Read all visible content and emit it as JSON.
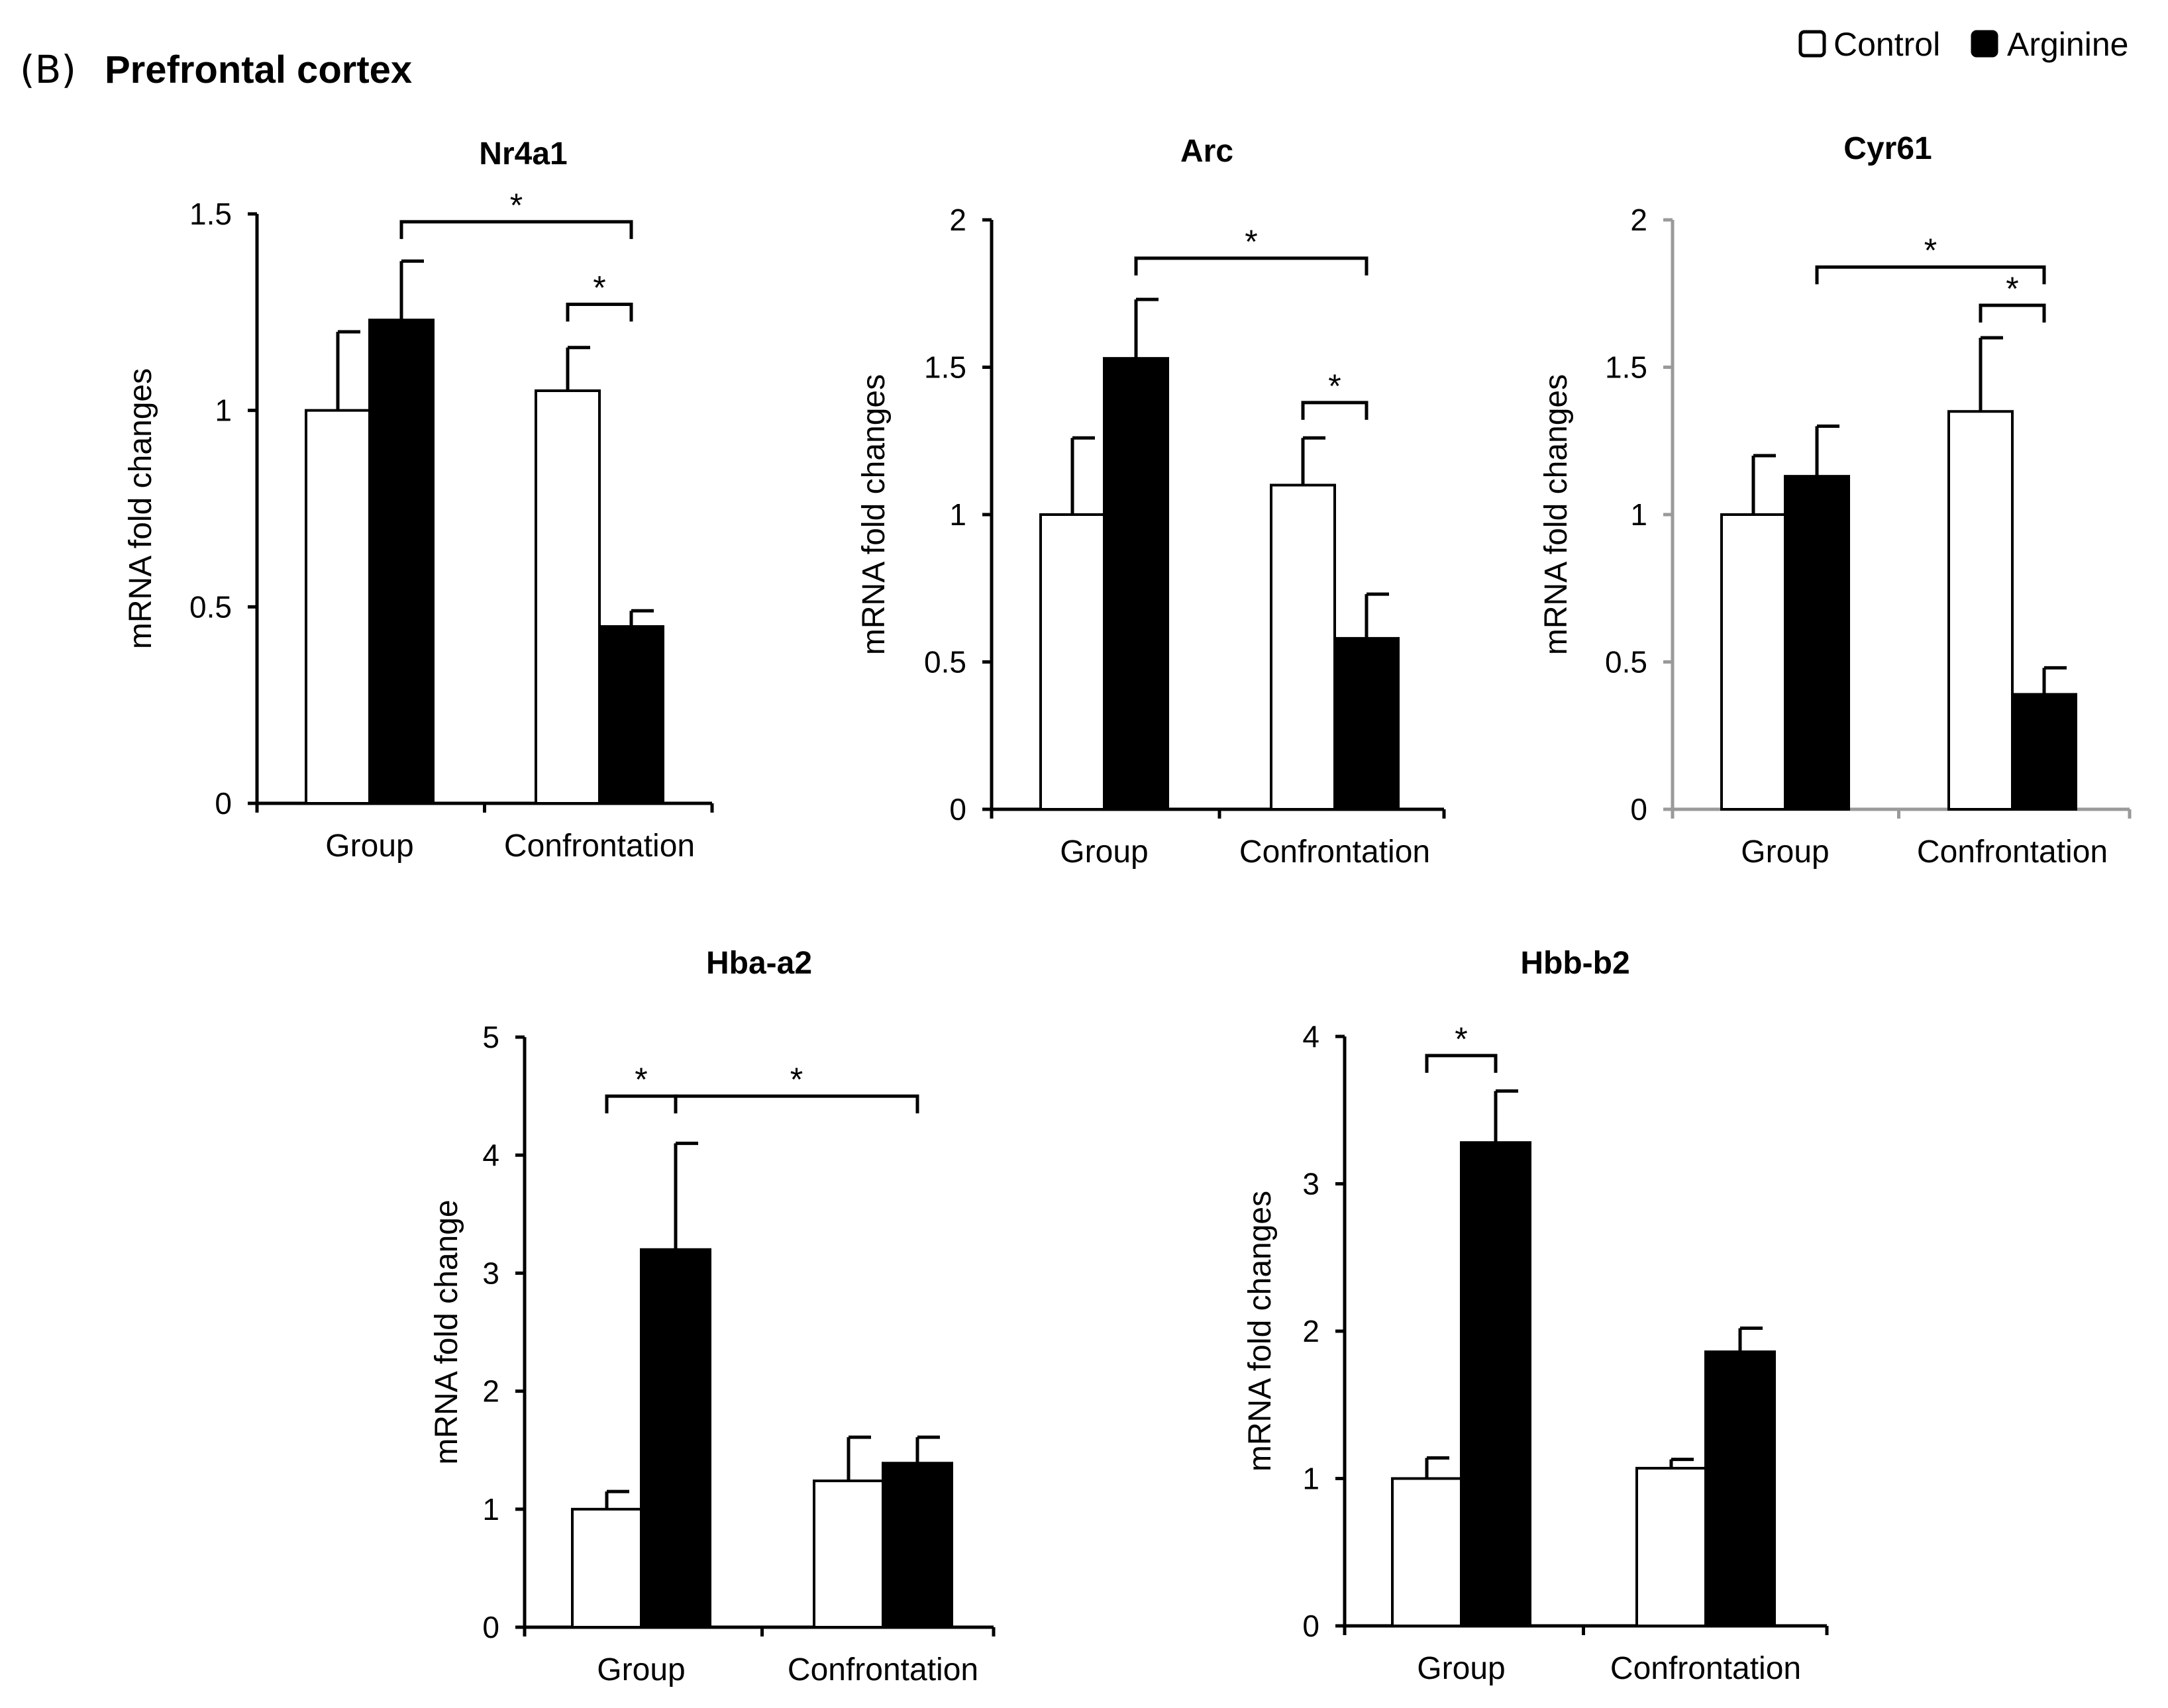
{
  "figure": {
    "panel_letter": "(B)",
    "panel_title": "Prefrontal cortex"
  },
  "legend": {
    "items": [
      {
        "label": "Control",
        "fill": "#ffffff"
      },
      {
        "label": "Arginine",
        "fill": "#000000"
      }
    ]
  },
  "colors": {
    "control": "#ffffff",
    "arginine": "#000000",
    "outline": "#000000",
    "axis_gray": "#9a9a9a"
  },
  "chart_data": [
    {
      "type": "bar",
      "title": "Nr4a1",
      "ylabel": "mRNA  fold changes",
      "ylim": [
        0,
        1.5
      ],
      "yticks": [
        "0",
        "0.5",
        "1",
        "1.5"
      ],
      "categories": [
        "Group",
        "Confrontation"
      ],
      "series": [
        {
          "name": "Control",
          "values": [
            1.0,
            1.05
          ],
          "errors": [
            0.2,
            0.11
          ]
        },
        {
          "name": "Arginine",
          "values": [
            1.23,
            0.45
          ],
          "errors": [
            0.15,
            0.04
          ]
        }
      ],
      "significance": [
        {
          "from": [
            0,
            1
          ],
          "to": [
            1,
            1
          ],
          "label": "*",
          "y": 1.48
        },
        {
          "from": [
            1,
            0
          ],
          "to": [
            1,
            1
          ],
          "label": "*",
          "y": 1.27
        }
      ]
    },
    {
      "type": "bar",
      "title": "Arc",
      "ylabel": "mRNA  fold changes",
      "ylim": [
        0,
        2
      ],
      "yticks": [
        "0",
        "0.5",
        "1",
        "1.5",
        "2"
      ],
      "categories": [
        "Group",
        "Confrontation"
      ],
      "series": [
        {
          "name": "Control",
          "values": [
            1.0,
            1.1
          ],
          "errors": [
            0.26,
            0.16
          ]
        },
        {
          "name": "Arginine",
          "values": [
            1.53,
            0.58
          ],
          "errors": [
            0.2,
            0.15
          ]
        }
      ],
      "significance": [
        {
          "from": [
            0,
            1
          ],
          "to": [
            1,
            1
          ],
          "label": "*",
          "y": 1.87
        },
        {
          "from": [
            1,
            0
          ],
          "to": [
            1,
            1
          ],
          "label": "*",
          "y": 1.38
        }
      ]
    },
    {
      "type": "bar",
      "title": "Cyr61",
      "ylabel": "mRNA  fold changes",
      "ylim": [
        0,
        2
      ],
      "yticks": [
        "0",
        "0.5",
        "1",
        "1.5",
        "2"
      ],
      "categories": [
        "Group",
        "Confrontation"
      ],
      "series": [
        {
          "name": "Control",
          "values": [
            1.0,
            1.35
          ],
          "errors": [
            0.2,
            0.25
          ]
        },
        {
          "name": "Arginine",
          "values": [
            1.13,
            0.39
          ],
          "errors": [
            0.17,
            0.09
          ]
        }
      ],
      "significance": [
        {
          "from": [
            0,
            1
          ],
          "to": [
            1,
            1
          ],
          "label": "*",
          "y": 1.84
        },
        {
          "from": [
            1,
            0
          ],
          "to": [
            1,
            1
          ],
          "label": "*",
          "y": 1.71
        }
      ]
    },
    {
      "type": "bar",
      "title": "Hba-a2",
      "ylabel": "mRNA  fold change",
      "ylim": [
        0,
        5
      ],
      "yticks": [
        "0",
        "1",
        "2",
        "3",
        "4",
        "5"
      ],
      "categories": [
        "Group",
        "Confrontation"
      ],
      "series": [
        {
          "name": "Control",
          "values": [
            1.0,
            1.24
          ],
          "errors": [
            0.15,
            0.37
          ]
        },
        {
          "name": "Arginine",
          "values": [
            3.2,
            1.39
          ],
          "errors": [
            0.9,
            0.22
          ]
        }
      ],
      "significance": [
        {
          "from": [
            0,
            0
          ],
          "to": [
            0,
            1
          ],
          "label": "*",
          "y": 4.5
        },
        {
          "from": [
            0,
            1
          ],
          "to": [
            1,
            1
          ],
          "label": "*",
          "y": 4.5
        }
      ]
    },
    {
      "type": "bar",
      "title": "Hbb-b2",
      "ylabel": "mRNA  fold changes",
      "ylim": [
        0,
        4
      ],
      "yticks": [
        "0",
        "1",
        "2",
        "3",
        "4"
      ],
      "categories": [
        "Group",
        "Confrontation"
      ],
      "series": [
        {
          "name": "Control",
          "values": [
            1.0,
            1.07
          ],
          "errors": [
            0.14,
            0.06
          ]
        },
        {
          "name": "Arginine",
          "values": [
            3.28,
            1.86
          ],
          "errors": [
            0.35,
            0.16
          ]
        }
      ],
      "significance": [
        {
          "from": [
            0,
            0
          ],
          "to": [
            0,
            1
          ],
          "label": "*",
          "y": 3.87
        }
      ]
    }
  ]
}
